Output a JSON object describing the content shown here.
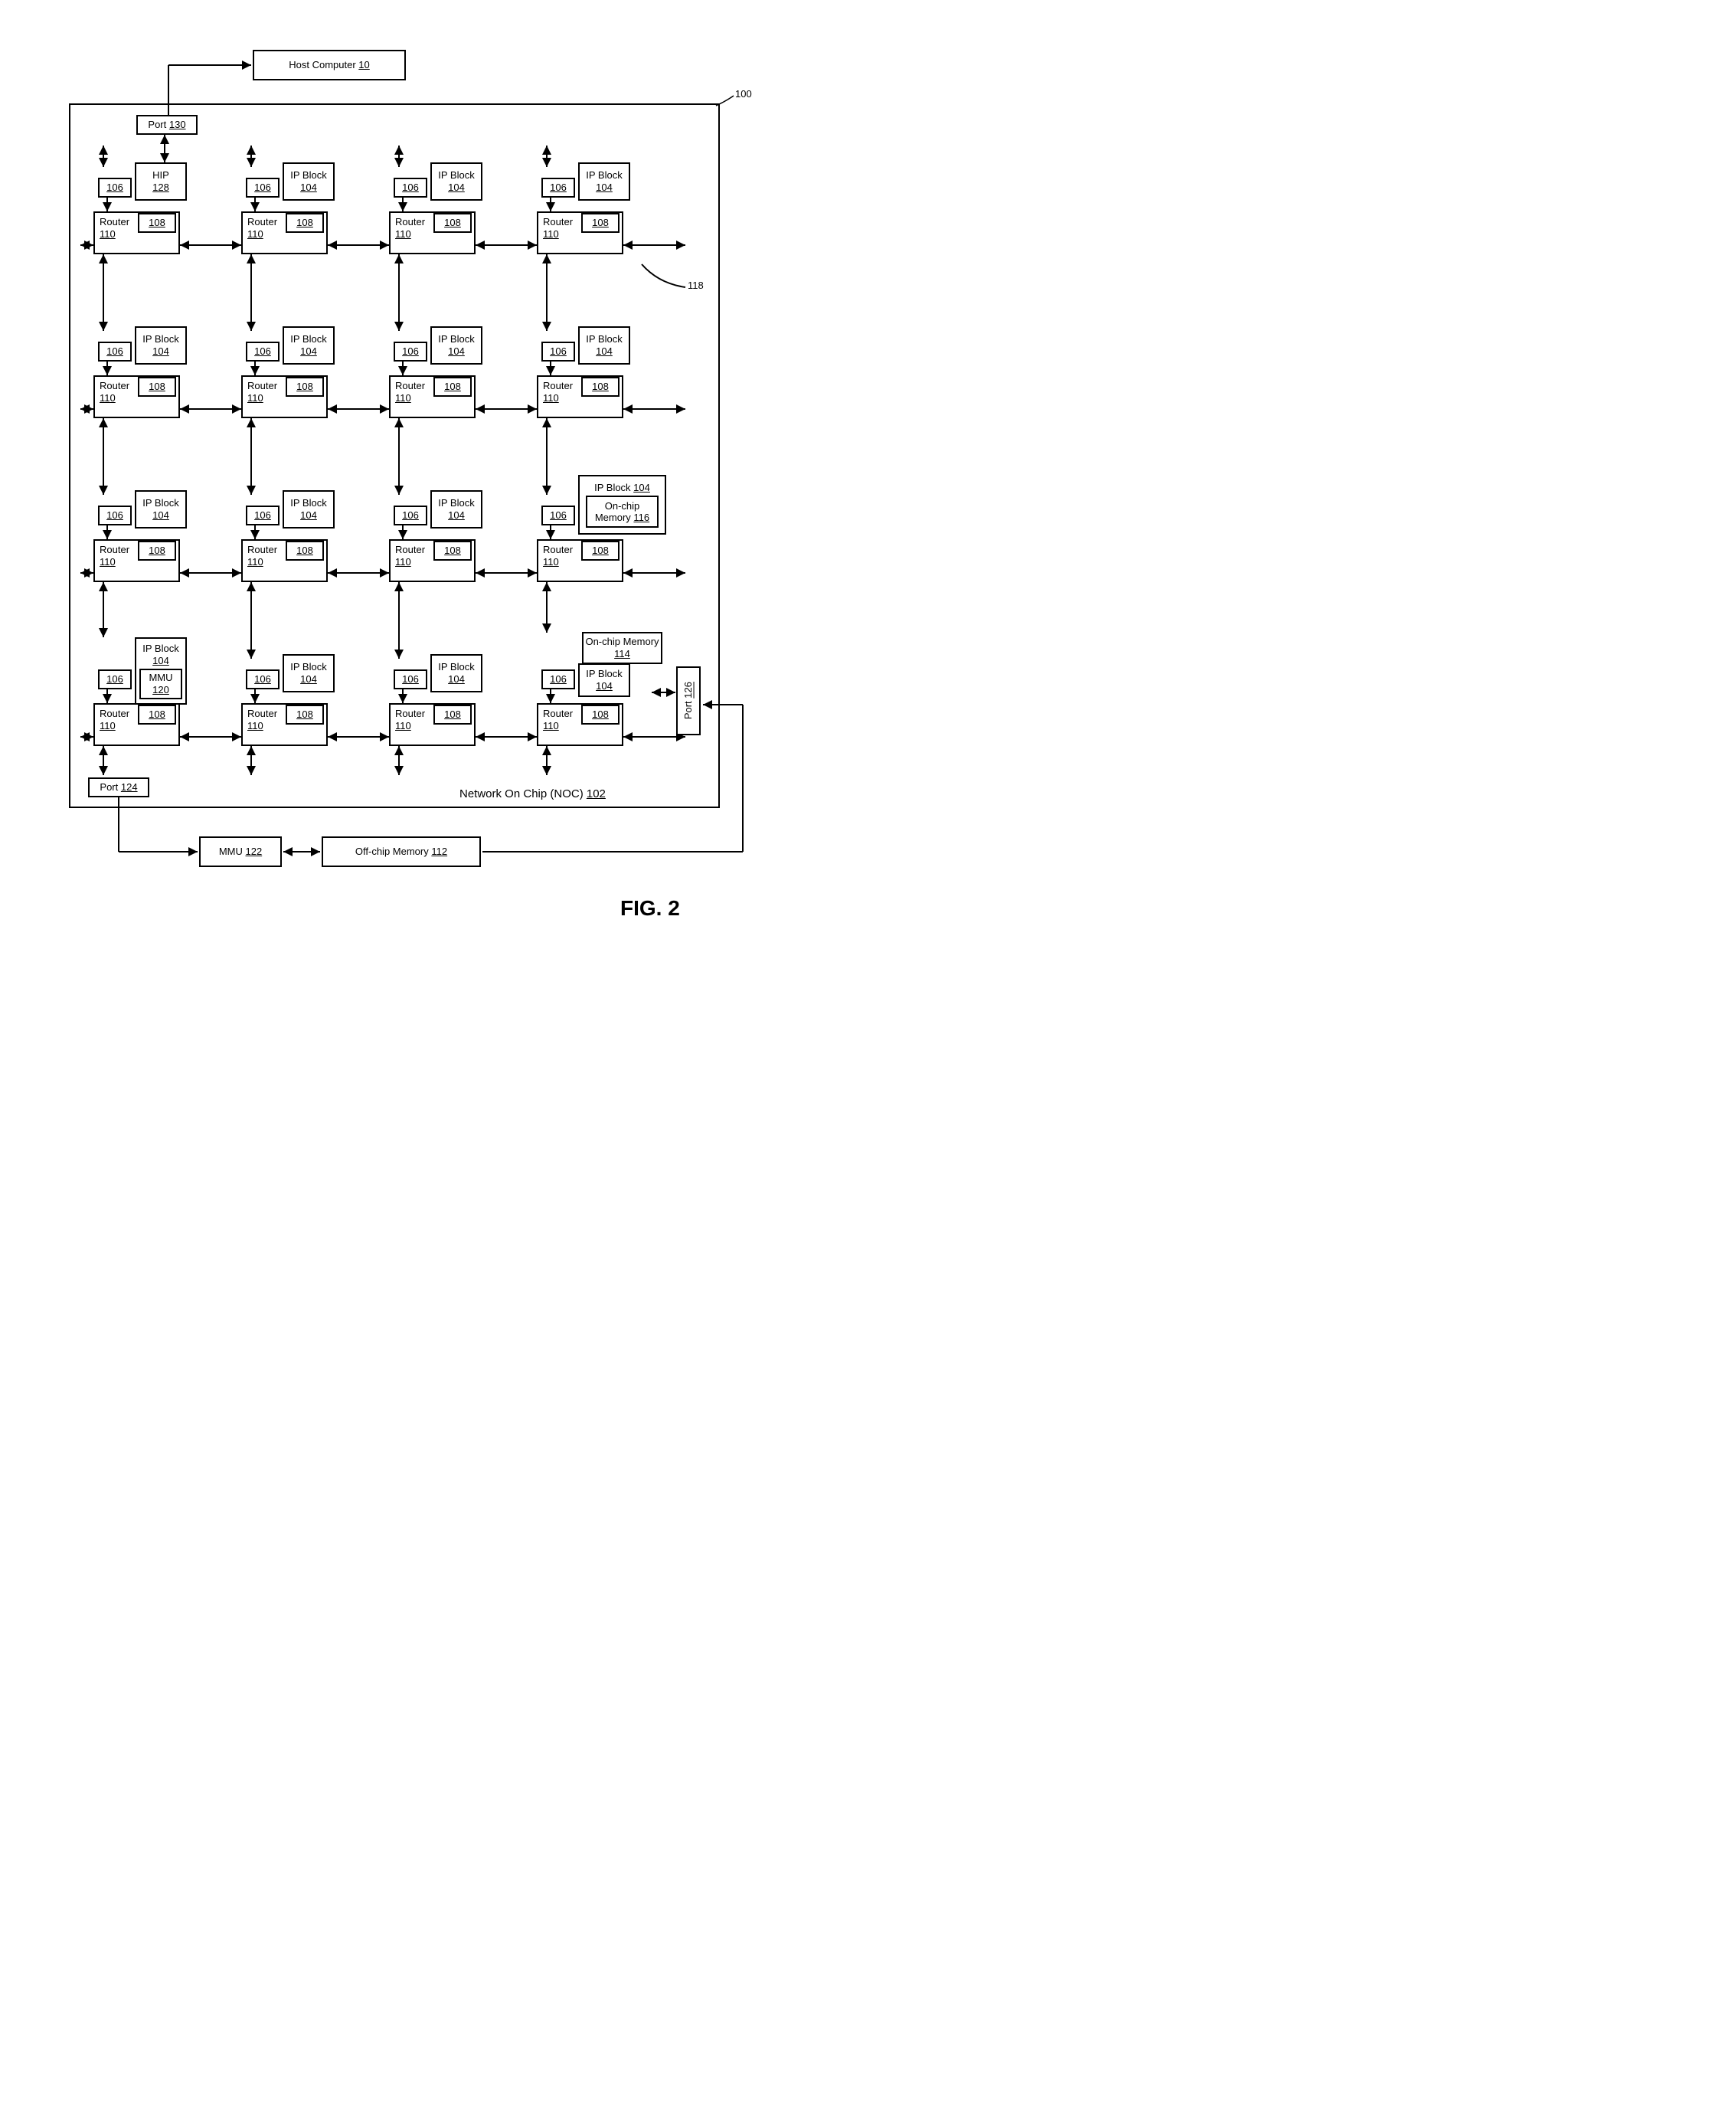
{
  "figure_label": "FIG. 2",
  "chip_ref": "100",
  "noc_label": "Network On Chip (NOC)",
  "noc_ref": "102",
  "host": {
    "label": "Host Computer",
    "ref": "10"
  },
  "port_130": {
    "label": "Port",
    "ref": "130"
  },
  "port_124": {
    "label": "Port",
    "ref": "124"
  },
  "port_126": {
    "label": "Port",
    "ref": "126"
  },
  "mmu_122": {
    "label": "MMU",
    "ref": "122"
  },
  "offchip": {
    "label": "Off-chip  Memory",
    "ref": "112"
  },
  "onchip_114": {
    "label": "On-chip Memory",
    "ref": "114"
  },
  "wire_118": "118",
  "tile": {
    "n106": "106",
    "n108": "108",
    "router": "Router",
    "router_ref": "110",
    "ip_block": "IP Block",
    "ip_ref": "104",
    "hip": "HIP",
    "hip_ref": "128",
    "mmu": "MMU",
    "mmu_ref": "120",
    "onchip": "On-chip Memory",
    "onchip_ref": "116"
  },
  "colors": {
    "line": "#000000",
    "bg": "#ffffff"
  }
}
